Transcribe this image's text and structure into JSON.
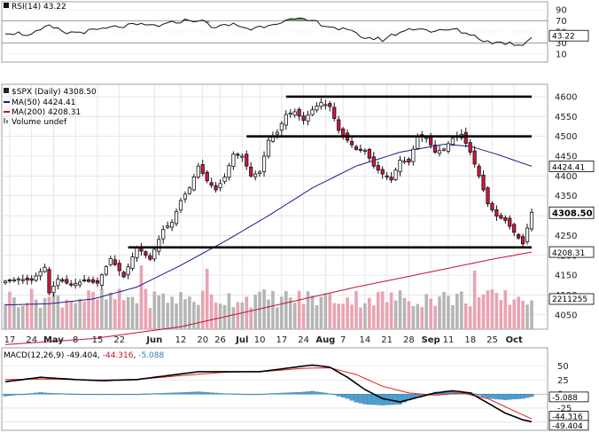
{
  "colors": {
    "up": "#ffffff",
    "down": "#d6143d",
    "ma50": "#1a1a8c",
    "ma200": "#c8102e",
    "vol_up": "#b5b5b5",
    "vol_down": "#e9a3b1",
    "macd_line": "#000000",
    "signal_line": "#e0201b",
    "histogram": "#4f9fd1",
    "rsi_fill": "#4c8a4c",
    "grid": "#d8d8d8"
  },
  "rsi": {
    "label": "RSI(14)",
    "value_text": "43.22",
    "ticks": [
      "90",
      "70",
      "50",
      "30",
      "10"
    ],
    "tick_values": [
      90,
      70,
      50,
      30,
      10
    ],
    "badge": "43.22",
    "last": 43.22
  },
  "price": {
    "title": "$SPX (Daily) 4308.50",
    "legend": [
      {
        "key": "ma50",
        "text": "MA(50) 4424.41"
      },
      {
        "key": "ma200",
        "text": "MA(200) 4208.31"
      },
      {
        "key": "vol",
        "text": "Volume undef"
      }
    ],
    "ticks": [
      "4600",
      "4550",
      "4500",
      "4450",
      "4400",
      "4350",
      "4300",
      "4250",
      "4200",
      "4150",
      "4100",
      "4050"
    ],
    "tick_values": [
      4600,
      4550,
      4500,
      4450,
      4400,
      4350,
      4300,
      4250,
      4200,
      4150,
      4100,
      4050
    ],
    "badges": [
      {
        "text": "4424.41",
        "value": 4424.41
      },
      {
        "text": "4308.50",
        "value": 4308.5
      },
      {
        "text": "4208.31",
        "value": 4208.31
      }
    ],
    "volume_badge": "2211255",
    "ylim": [
      4025,
      4620
    ]
  },
  "x_axis": {
    "labels": [
      {
        "text": "17",
        "idx": 1,
        "bold": false
      },
      {
        "text": "24",
        "idx": 6,
        "bold": false
      },
      {
        "text": "May",
        "idx": 11,
        "bold": true
      },
      {
        "text": "8",
        "idx": 16,
        "bold": false
      },
      {
        "text": "15",
        "idx": 21,
        "bold": false
      },
      {
        "text": "22",
        "idx": 26,
        "bold": false
      },
      {
        "text": "Jun",
        "idx": 34,
        "bold": true
      },
      {
        "text": "12",
        "idx": 40,
        "bold": false
      },
      {
        "text": "20",
        "idx": 45,
        "bold": false
      },
      {
        "text": "26",
        "idx": 49,
        "bold": false
      },
      {
        "text": "Jul",
        "idx": 54,
        "bold": true
      },
      {
        "text": "10",
        "idx": 58,
        "bold": false
      },
      {
        "text": "17",
        "idx": 63,
        "bold": false
      },
      {
        "text": "24",
        "idx": 68,
        "bold": false
      },
      {
        "text": "Aug",
        "idx": 73,
        "bold": true
      },
      {
        "text": "7",
        "idx": 77,
        "bold": false
      },
      {
        "text": "14",
        "idx": 82,
        "bold": false
      },
      {
        "text": "21",
        "idx": 87,
        "bold": false
      },
      {
        "text": "28",
        "idx": 92,
        "bold": false
      },
      {
        "text": "Sep",
        "idx": 97,
        "bold": true
      },
      {
        "text": "11",
        "idx": 101,
        "bold": false
      },
      {
        "text": "18",
        "idx": 106,
        "bold": false
      },
      {
        "text": "25",
        "idx": 111,
        "bold": false
      },
      {
        "text": "Oct",
        "idx": 116,
        "bold": true
      }
    ]
  },
  "macd": {
    "label_prefix": "MACD(12,26,9)",
    "v1": "-49.404",
    "v2": "-44.316",
    "v3": "-5.088",
    "ticks": [
      "50",
      "25",
      "0",
      "-25",
      "-50"
    ],
    "tick_values": [
      50,
      25,
      0,
      -25,
      -50
    ],
    "badges": [
      "-5.088",
      "-44.316",
      "-49.404"
    ],
    "badge_values": [
      -5.088,
      -44.316,
      -49.404
    ],
    "ylim": [
      -60,
      70
    ]
  },
  "chart_data": {
    "type": "candlestick",
    "title": "$SPX (Daily) 4308.50",
    "horizontal_levels": [
      4600,
      4500,
      4220
    ],
    "close_keypoints": [
      [
        0,
        4135
      ],
      [
        3,
        4140
      ],
      [
        6,
        4137
      ],
      [
        9,
        4170
      ],
      [
        10,
        4105
      ],
      [
        12,
        4140
      ],
      [
        15,
        4125
      ],
      [
        18,
        4136
      ],
      [
        21,
        4130
      ],
      [
        24,
        4192
      ],
      [
        27,
        4146
      ],
      [
        30,
        4221
      ],
      [
        33,
        4190
      ],
      [
        36,
        4265
      ],
      [
        38,
        4283
      ],
      [
        40,
        4338
      ],
      [
        42,
        4370
      ],
      [
        44,
        4425
      ],
      [
        46,
        4388
      ],
      [
        48,
        4365
      ],
      [
        50,
        4397
      ],
      [
        52,
        4455
      ],
      [
        54,
        4450
      ],
      [
        56,
        4400
      ],
      [
        58,
        4410
      ],
      [
        60,
        4490
      ],
      [
        62,
        4510
      ],
      [
        64,
        4555
      ],
      [
        66,
        4562
      ],
      [
        68,
        4540
      ],
      [
        70,
        4567
      ],
      [
        72,
        4585
      ],
      [
        74,
        4575
      ],
      [
        76,
        4515
      ],
      [
        78,
        4490
      ],
      [
        80,
        4467
      ],
      [
        82,
        4465
      ],
      [
        84,
        4425
      ],
      [
        86,
        4405
      ],
      [
        88,
        4390
      ],
      [
        90,
        4440
      ],
      [
        92,
        4435
      ],
      [
        94,
        4500
      ],
      [
        96,
        4497
      ],
      [
        98,
        4460
      ],
      [
        100,
        4468
      ],
      [
        102,
        4495
      ],
      [
        104,
        4505
      ],
      [
        106,
        4460
      ],
      [
        108,
        4400
      ],
      [
        110,
        4330
      ],
      [
        112,
        4299
      ],
      [
        114,
        4288
      ],
      [
        116,
        4258
      ],
      [
        118,
        4229
      ],
      [
        120,
        4308.5
      ]
    ],
    "ma50_keypoints": [
      [
        0,
        4075
      ],
      [
        10,
        4078
      ],
      [
        20,
        4090
      ],
      [
        30,
        4120
      ],
      [
        40,
        4175
      ],
      [
        50,
        4235
      ],
      [
        60,
        4300
      ],
      [
        70,
        4370
      ],
      [
        80,
        4425
      ],
      [
        90,
        4460
      ],
      [
        100,
        4480
      ],
      [
        106,
        4475
      ],
      [
        112,
        4455
      ],
      [
        120,
        4424.41
      ]
    ],
    "ma200_keypoints": [
      [
        0,
        3975
      ],
      [
        20,
        3990
      ],
      [
        40,
        4020
      ],
      [
        60,
        4070
      ],
      [
        80,
        4120
      ],
      [
        100,
        4165
      ],
      [
        110,
        4188
      ],
      [
        120,
        4208.31
      ]
    ],
    "rsi_keypoints": [
      [
        0,
        50
      ],
      [
        6,
        45
      ],
      [
        10,
        60
      ],
      [
        14,
        48
      ],
      [
        20,
        52
      ],
      [
        26,
        60
      ],
      [
        30,
        62
      ],
      [
        36,
        62
      ],
      [
        40,
        70
      ],
      [
        44,
        72
      ],
      [
        48,
        58
      ],
      [
        52,
        64
      ],
      [
        56,
        55
      ],
      [
        62,
        68
      ],
      [
        66,
        72
      ],
      [
        70,
        70
      ],
      [
        74,
        60
      ],
      [
        78,
        52
      ],
      [
        82,
        40
      ],
      [
        86,
        36
      ],
      [
        90,
        50
      ],
      [
        94,
        58
      ],
      [
        98,
        50
      ],
      [
        102,
        55
      ],
      [
        106,
        46
      ],
      [
        110,
        32
      ],
      [
        114,
        30
      ],
      [
        118,
        27
      ],
      [
        120,
        43.22
      ]
    ],
    "macd_keypoints": [
      [
        0,
        22
      ],
      [
        8,
        30
      ],
      [
        16,
        26
      ],
      [
        22,
        24
      ],
      [
        30,
        26
      ],
      [
        38,
        34
      ],
      [
        44,
        40
      ],
      [
        50,
        40
      ],
      [
        58,
        40
      ],
      [
        64,
        46
      ],
      [
        70,
        52
      ],
      [
        74,
        48
      ],
      [
        78,
        30
      ],
      [
        82,
        8
      ],
      [
        86,
        -8
      ],
      [
        90,
        -14
      ],
      [
        94,
        -6
      ],
      [
        98,
        2
      ],
      [
        102,
        6
      ],
      [
        106,
        2
      ],
      [
        110,
        -16
      ],
      [
        114,
        -34
      ],
      [
        118,
        -46
      ],
      [
        120,
        -49.404
      ]
    ],
    "signal_keypoints": [
      [
        0,
        26
      ],
      [
        10,
        27
      ],
      [
        20,
        25
      ],
      [
        30,
        26
      ],
      [
        40,
        33
      ],
      [
        50,
        39
      ],
      [
        60,
        41
      ],
      [
        68,
        46
      ],
      [
        74,
        47
      ],
      [
        80,
        35
      ],
      [
        86,
        14
      ],
      [
        92,
        2
      ],
      [
        98,
        -2
      ],
      [
        104,
        2
      ],
      [
        110,
        -8
      ],
      [
        116,
        -30
      ],
      [
        120,
        -44.316
      ]
    ],
    "xlabel": "",
    "ylabel": ""
  }
}
